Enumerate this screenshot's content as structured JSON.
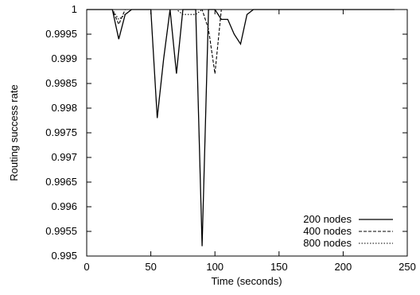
{
  "chart_data": {
    "type": "line",
    "title": "",
    "xlabel": "Time (seconds)",
    "ylabel": "Routing success rate",
    "xlim": [
      0,
      250
    ],
    "ylim": [
      0.995,
      1
    ],
    "xticks": [
      0,
      50,
      100,
      150,
      200,
      250
    ],
    "xtick_labels": [
      "0",
      "50",
      "100",
      "150",
      "200",
      "250"
    ],
    "yticks": [
      0.995,
      0.9955,
      0.996,
      0.9965,
      0.997,
      0.9975,
      0.998,
      0.9985,
      0.999,
      0.9995,
      1
    ],
    "ytick_labels": [
      "0.995",
      "0.9955",
      "0.996",
      "0.9965",
      "0.997",
      "0.9975",
      "0.998",
      "0.9985",
      "0.999",
      "0.9995",
      "1"
    ],
    "grid": false,
    "legend_position": "bottom-right",
    "series": [
      {
        "name": "200 nodes",
        "style": "solid",
        "x": [
          0,
          20,
          25,
          30,
          35,
          40,
          45,
          50,
          55,
          60,
          65,
          70,
          75,
          80,
          85,
          90,
          95,
          100,
          105,
          110,
          115,
          120,
          125,
          130,
          135,
          140,
          145,
          150,
          200,
          240
        ],
        "y": [
          1,
          1,
          0.9994,
          0.9999,
          1,
          1,
          1,
          1,
          0.9978,
          0.999,
          1,
          0.9987,
          1,
          1,
          1,
          0.9952,
          1,
          1,
          0.9998,
          0.9998,
          0.9995,
          0.9993,
          0.9999,
          1,
          1,
          1,
          1,
          1,
          1,
          1
        ]
      },
      {
        "name": "400 nodes",
        "style": "dashed",
        "x": [
          0,
          20,
          25,
          30,
          35,
          40,
          45,
          50,
          55,
          60,
          65,
          70,
          75,
          80,
          85,
          90,
          95,
          100,
          105,
          110,
          115,
          120,
          150,
          200,
          240
        ],
        "y": [
          1,
          1,
          0.9997,
          1,
          1,
          1,
          1,
          1,
          1,
          1,
          1,
          1,
          1,
          1,
          1,
          1,
          0.9996,
          0.9987,
          1,
          1,
          1,
          1,
          1,
          1,
          1
        ]
      },
      {
        "name": "800 nodes",
        "style": "dotted",
        "x": [
          0,
          20,
          25,
          30,
          35,
          40,
          45,
          50,
          55,
          60,
          65,
          70,
          75,
          80,
          85,
          90,
          95,
          100,
          150,
          200,
          240
        ],
        "y": [
          1,
          1,
          0.9998,
          0.9999,
          1,
          1,
          1,
          1,
          1,
          1,
          1,
          1,
          0.9999,
          0.9999,
          0.9999,
          1,
          1,
          1,
          1,
          1,
          1
        ]
      }
    ]
  }
}
